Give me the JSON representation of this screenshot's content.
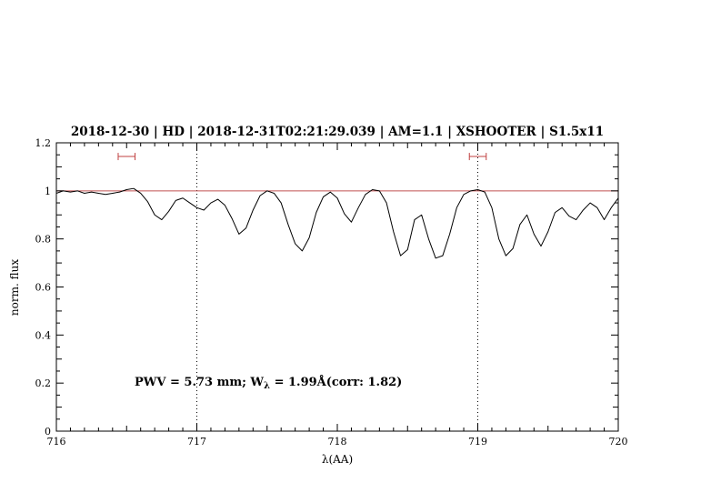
{
  "title": "2018-12-30 | HD | 2018-12-31T02:21:29.039 | AM=1.1 | XSHOOTER | S1.5x11",
  "colors": {
    "title": "#0000cd",
    "annotation": "#0000cd",
    "continuum_line": "#c05050",
    "marker": "#c04040",
    "spectrum": "#000000",
    "axis": "#000000"
  },
  "annotation": {
    "prefix": "PWV = 5.73 mm; W",
    "sub": "λ",
    "suffix": " = 1.99Å(corr: 1.82)"
  },
  "chart_data": {
    "type": "line",
    "title": "2018-12-30 | HD | 2018-12-31T02:21:29.039 | AM=1.1 | XSHOOTER | S1.5x11",
    "xlabel": "λ(AA)",
    "ylabel": "norm. flux",
    "xlim": [
      716,
      720
    ],
    "ylim": [
      0,
      1.2
    ],
    "x_ticks": [
      716,
      717,
      718,
      719,
      720
    ],
    "x_tick_labels": [
      "716",
      "717",
      "718",
      "719",
      "720"
    ],
    "y_ticks": [
      0,
      0.2,
      0.4,
      0.6,
      0.8,
      1.0,
      1.2
    ],
    "y_tick_labels": [
      "0",
      "0.2",
      "0.4",
      "0.6",
      "0.8",
      "1",
      "1.2"
    ],
    "x_minor_step": 0.1,
    "y_minor_step": 0.05,
    "grid": "off",
    "legend": "none",
    "reference_line_y": 1.0,
    "dotted_vlines": [
      717,
      719
    ],
    "range_markers": [
      {
        "x_center": 716.5,
        "half_width": 0.06,
        "y": 1.143
      },
      {
        "x_center": 719.0,
        "half_width": 0.06,
        "y": 1.143
      }
    ],
    "series": [
      {
        "name": "spectrum",
        "x": [
          716.0,
          716.05,
          716.1,
          716.15,
          716.2,
          716.25,
          716.3,
          716.35,
          716.4,
          716.45,
          716.5,
          716.55,
          716.6,
          716.65,
          716.7,
          716.75,
          716.8,
          716.85,
          716.9,
          716.95,
          717.0,
          717.05,
          717.1,
          717.15,
          717.2,
          717.25,
          717.3,
          717.35,
          717.4,
          717.45,
          717.5,
          717.55,
          717.6,
          717.65,
          717.7,
          717.75,
          717.8,
          717.85,
          717.9,
          717.95,
          718.0,
          718.05,
          718.1,
          718.15,
          718.2,
          718.25,
          718.3,
          718.35,
          718.4,
          718.45,
          718.5,
          718.55,
          718.6,
          718.65,
          718.7,
          718.75,
          718.8,
          718.85,
          718.9,
          718.95,
          719.0,
          719.05,
          719.1,
          719.15,
          719.2,
          719.25,
          719.3,
          719.35,
          719.4,
          719.45,
          719.5,
          719.55,
          719.6,
          719.65,
          719.7,
          719.75,
          719.8,
          719.85,
          719.9,
          719.95,
          720.0
        ],
        "y": [
          0.99,
          1.0,
          0.995,
          1.0,
          0.99,
          0.995,
          0.99,
          0.985,
          0.99,
          0.995,
          1.005,
          1.01,
          0.99,
          0.955,
          0.9,
          0.88,
          0.915,
          0.96,
          0.97,
          0.95,
          0.93,
          0.92,
          0.95,
          0.965,
          0.94,
          0.885,
          0.82,
          0.845,
          0.92,
          0.98,
          1.0,
          0.99,
          0.95,
          0.86,
          0.78,
          0.75,
          0.805,
          0.91,
          0.975,
          0.995,
          0.97,
          0.905,
          0.87,
          0.93,
          0.985,
          1.005,
          1.0,
          0.95,
          0.83,
          0.73,
          0.755,
          0.88,
          0.9,
          0.8,
          0.72,
          0.73,
          0.82,
          0.93,
          0.985,
          1.0,
          1.005,
          0.995,
          0.93,
          0.8,
          0.73,
          0.76,
          0.86,
          0.9,
          0.82,
          0.77,
          0.83,
          0.91,
          0.93,
          0.895,
          0.88,
          0.92,
          0.95,
          0.93,
          0.88,
          0.93,
          0.97
        ]
      }
    ]
  }
}
